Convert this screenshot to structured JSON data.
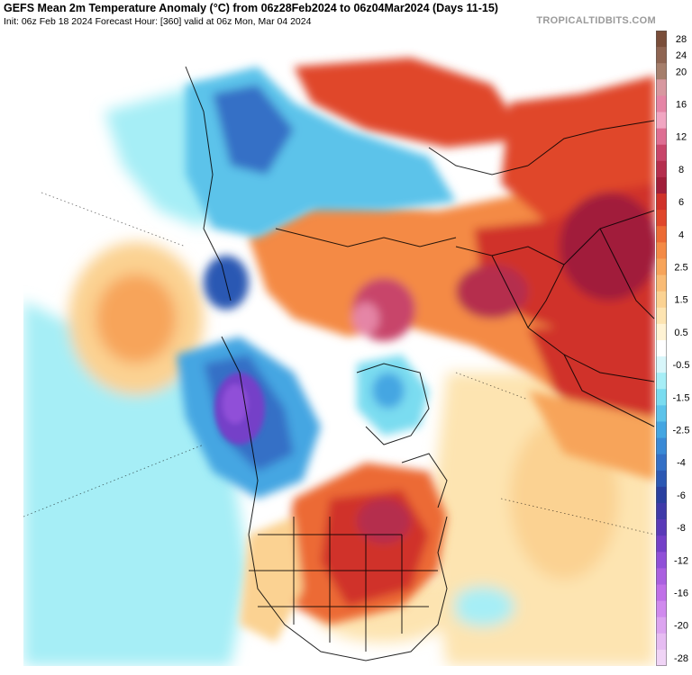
{
  "header": {
    "title": "GEFS Mean 2m Temperature Anomaly (°C) from 06z28Feb2024 to 06z04Mar2024 (Days 11-15)",
    "subtitle": "Init: 06z Feb 18 2024   Forecast Hour: [360]   valid at 06z Mon, Mar 04 2024",
    "site": "TROPICALTIDBITS.COM"
  },
  "colorbar": {
    "levels": [
      {
        "label": "28",
        "color": "#7a4e3a"
      },
      {
        "label": "24",
        "color": "#8f6552"
      },
      {
        "label": "20",
        "color": "#a57e6b"
      },
      {
        "label": "",
        "color": "#d898a0"
      },
      {
        "label": "16",
        "color": "#e585a6"
      },
      {
        "label": "",
        "color": "#f1a6c2"
      },
      {
        "label": "12",
        "color": "#de6e93"
      },
      {
        "label": "",
        "color": "#c8456a"
      },
      {
        "label": "8",
        "color": "#b52e4e"
      },
      {
        "label": "",
        "color": "#a11e3a"
      },
      {
        "label": "6",
        "color": "#d0322a"
      },
      {
        "label": "",
        "color": "#e0462b"
      },
      {
        "label": "4",
        "color": "#ec6a34"
      },
      {
        "label": "",
        "color": "#f48a45"
      },
      {
        "label": "2.5",
        "color": "#f7a45a"
      },
      {
        "label": "",
        "color": "#f9bb75"
      },
      {
        "label": "1.5",
        "color": "#fbd292"
      },
      {
        "label": "",
        "color": "#fde4b1"
      },
      {
        "label": "0.5",
        "color": "#fff3d4"
      },
      {
        "label": "",
        "color": "#ffffff"
      },
      {
        "label": "-0.5",
        "color": "#d8f6fa"
      },
      {
        "label": "",
        "color": "#a6eef6"
      },
      {
        "label": "-1.5",
        "color": "#7adcf0"
      },
      {
        "label": "",
        "color": "#5cc3ea"
      },
      {
        "label": "-2.5",
        "color": "#44a6e2"
      },
      {
        "label": "",
        "color": "#3a8ad6"
      },
      {
        "label": "-4",
        "color": "#3470c6"
      },
      {
        "label": "",
        "color": "#2c58b3"
      },
      {
        "label": "-6",
        "color": "#2a40a0"
      },
      {
        "label": "",
        "color": "#3f3aa9"
      },
      {
        "label": "-8",
        "color": "#5a3ab8"
      },
      {
        "label": "",
        "color": "#7440c8"
      },
      {
        "label": "-12",
        "color": "#9050d8"
      },
      {
        "label": "",
        "color": "#aa60e0"
      },
      {
        "label": "-16",
        "color": "#c070e8"
      },
      {
        "label": "",
        "color": "#d08aee"
      },
      {
        "label": "-20",
        "color": "#dca4f0"
      },
      {
        "label": "",
        "color": "#e6bcf2"
      },
      {
        "label": "-28",
        "color": "#f0d4f6"
      }
    ]
  }
}
